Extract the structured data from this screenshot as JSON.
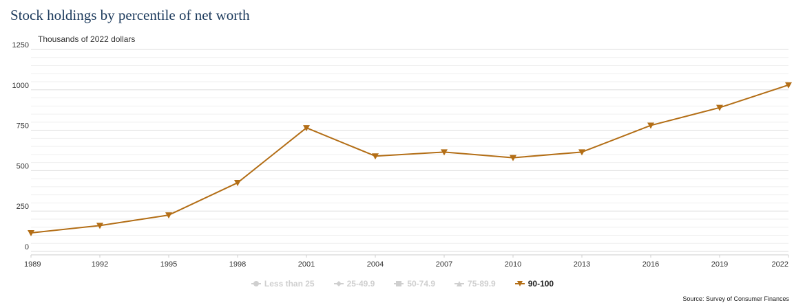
{
  "title": "Stock holdings by percentile of net worth",
  "source": "Source: Survey of Consumer Finances",
  "colors": {
    "active_series": "#b36e16",
    "inactive_legend": "#cfcfcf",
    "title": "#1c3a5c",
    "grid": "#e6e6e6"
  },
  "legend": {
    "items": [
      {
        "label": "Less than 25",
        "marker": "circle",
        "active": false
      },
      {
        "label": "25-49.9",
        "marker": "diamond",
        "active": false
      },
      {
        "label": "50-74.9",
        "marker": "square",
        "active": false
      },
      {
        "label": "75-89.9",
        "marker": "triangle-up",
        "active": false
      },
      {
        "label": "90-100",
        "marker": "triangle-down",
        "active": true
      }
    ]
  },
  "chart_data": {
    "type": "line",
    "title": "Stock holdings by percentile of net worth",
    "ylabel": "Thousands of 2022 dollars",
    "xlabel": "",
    "x": [
      "1989",
      "1992",
      "1995",
      "1998",
      "2001",
      "2004",
      "2007",
      "2010",
      "2013",
      "2016",
      "2019",
      "2022"
    ],
    "ylim": [
      0,
      1250
    ],
    "yticks": [
      0,
      250,
      500,
      750,
      1000,
      1250
    ],
    "minor_grid_step": 50,
    "grid": true,
    "series": [
      {
        "name": "90-100",
        "marker": "triangle-down",
        "values": [
          115,
          160,
          225,
          425,
          765,
          590,
          615,
          580,
          615,
          780,
          890,
          1030
        ]
      }
    ]
  }
}
